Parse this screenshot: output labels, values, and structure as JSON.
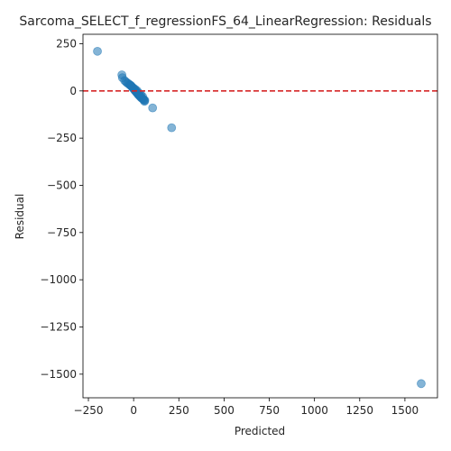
{
  "chart_data": {
    "type": "scatter",
    "title": "Sarcoma_SELECT_f_regressionFS_64_LinearRegression: Residuals",
    "xlabel": "Predicted",
    "ylabel": "Residual",
    "xlim": [
      -280,
      1680
    ],
    "ylim": [
      -1625,
      300
    ],
    "xticks": [
      -250,
      0,
      250,
      500,
      750,
      1000,
      1250,
      1500
    ],
    "xtick_labels": [
      "−250",
      "0",
      "250",
      "500",
      "750",
      "1000",
      "1250",
      "1500"
    ],
    "yticks": [
      250,
      0,
      -250,
      -500,
      -750,
      -1000,
      -1250,
      -1500
    ],
    "ytick_labels": [
      "250",
      "0",
      "−250",
      "−500",
      "−750",
      "−1000",
      "−1250",
      "−1500"
    ],
    "grid": false,
    "reference_line": {
      "y": 0,
      "color": "#d62728",
      "style": "dashed"
    },
    "point_color": "#1f77b4",
    "points": [
      {
        "x": -200,
        "y": 210
      },
      {
        "x": -65,
        "y": 85
      },
      {
        "x": -62,
        "y": 70
      },
      {
        "x": -50,
        "y": 55
      },
      {
        "x": -42,
        "y": 48
      },
      {
        "x": -35,
        "y": 42
      },
      {
        "x": -28,
        "y": 38
      },
      {
        "x": -22,
        "y": 33
      },
      {
        "x": -18,
        "y": 30
      },
      {
        "x": -12,
        "y": 25
      },
      {
        "x": -8,
        "y": 20
      },
      {
        "x": -3,
        "y": 14
      },
      {
        "x": 2,
        "y": 10
      },
      {
        "x": 5,
        "y": 5
      },
      {
        "x": 8,
        "y": 2
      },
      {
        "x": 12,
        "y": -3
      },
      {
        "x": 15,
        "y": -6
      },
      {
        "x": 18,
        "y": -10
      },
      {
        "x": 22,
        "y": -14
      },
      {
        "x": 25,
        "y": -18
      },
      {
        "x": 28,
        "y": -22
      },
      {
        "x": 32,
        "y": -25
      },
      {
        "x": 35,
        "y": -28
      },
      {
        "x": 38,
        "y": -32
      },
      {
        "x": 42,
        "y": -35
      },
      {
        "x": 45,
        "y": -38
      },
      {
        "x": 48,
        "y": -40
      },
      {
        "x": 52,
        "y": -43
      },
      {
        "x": 55,
        "y": -46
      },
      {
        "x": 58,
        "y": -48
      },
      {
        "x": 62,
        "y": -50
      },
      {
        "x": 50,
        "y": -30
      },
      {
        "x": 40,
        "y": -20
      },
      {
        "x": 30,
        "y": -12
      },
      {
        "x": 20,
        "y": 0
      },
      {
        "x": 10,
        "y": 8
      },
      {
        "x": 0,
        "y": 15
      },
      {
        "x": -15,
        "y": 28
      },
      {
        "x": 60,
        "y": -55
      },
      {
        "x": 105,
        "y": -90
      },
      {
        "x": 210,
        "y": -195
      },
      {
        "x": 1590,
        "y": -1550
      }
    ]
  }
}
